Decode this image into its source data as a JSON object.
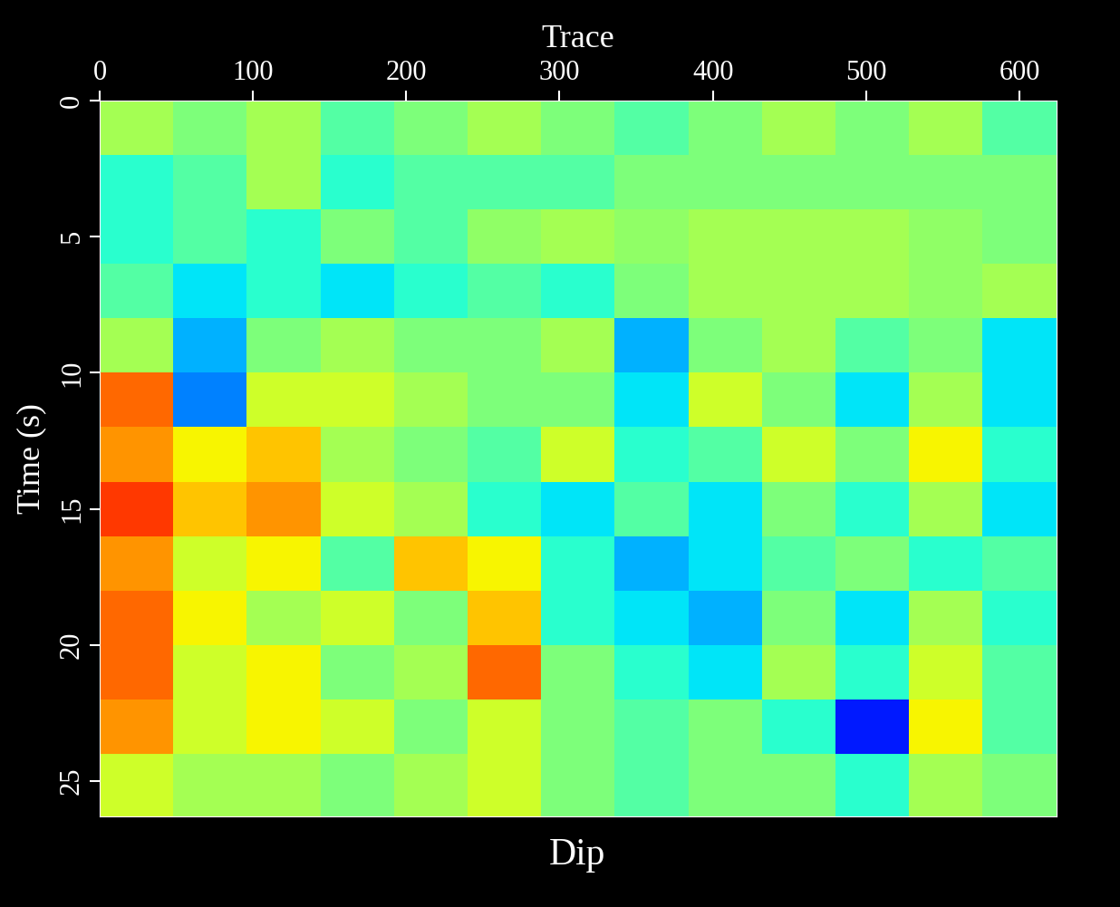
{
  "chart_data": {
    "type": "heatmap",
    "title": "Dip",
    "x_label": "Trace",
    "y_label": "Time (s)",
    "xlim": [
      0,
      624
    ],
    "xticks": [
      0,
      100,
      200,
      300,
      400,
      500,
      600
    ],
    "ylim": [
      26.3,
      0
    ],
    "yticks": [
      0,
      5,
      10,
      15,
      20,
      25
    ],
    "x_edges": [
      0,
      48,
      96,
      144,
      192,
      240,
      288,
      336,
      384,
      432,
      480,
      528,
      576,
      624
    ],
    "y_edges": [
      0,
      2,
      4,
      6,
      8,
      10,
      12,
      14,
      16,
      18,
      20,
      22,
      24,
      26.3
    ],
    "color_range": [
      -1,
      1
    ],
    "cells": [
      [
        0.1,
        0,
        0.1,
        -0.1,
        0,
        0.1,
        0,
        -0.1,
        0,
        0.1,
        0,
        0.1,
        -0.1
      ],
      [
        -0.2,
        -0.1,
        0.1,
        -0.2,
        -0.1,
        -0.1,
        -0.1,
        0,
        0,
        0,
        0,
        0,
        0
      ],
      [
        -0.2,
        -0.1,
        -0.2,
        0,
        -0.1,
        0.05,
        0.1,
        0.05,
        0.1,
        0.1,
        0.1,
        0.05,
        0
      ],
      [
        -0.1,
        -0.3,
        -0.2,
        -0.3,
        -0.2,
        -0.1,
        -0.2,
        0,
        0.1,
        0.1,
        0.1,
        0.05,
        0.1
      ],
      [
        0.1,
        -0.4,
        0,
        0.1,
        0,
        0,
        0.1,
        -0.4,
        0,
        0.1,
        -0.1,
        0,
        -0.3
      ],
      [
        0.6,
        -0.5,
        0.2,
        0.2,
        0.1,
        0,
        0,
        -0.3,
        0.2,
        0,
        -0.3,
        0.1,
        -0.3
      ],
      [
        0.5,
        0.3,
        0.4,
        0.1,
        0,
        -0.1,
        0.2,
        -0.2,
        -0.1,
        0.2,
        0,
        0.3,
        -0.2
      ],
      [
        0.7,
        0.4,
        0.5,
        0.2,
        0.1,
        -0.2,
        -0.3,
        -0.1,
        -0.3,
        0,
        -0.2,
        0.1,
        -0.3
      ],
      [
        0.5,
        0.2,
        0.3,
        -0.1,
        0.4,
        0.3,
        -0.2,
        -0.4,
        -0.3,
        -0.1,
        0,
        -0.2,
        -0.1
      ],
      [
        0.6,
        0.3,
        0.1,
        0.2,
        0,
        0.4,
        -0.2,
        -0.3,
        -0.4,
        0,
        -0.3,
        0.1,
        -0.2
      ],
      [
        0.6,
        0.2,
        0.3,
        0,
        0.1,
        0.6,
        0,
        -0.2,
        -0.3,
        0.1,
        -0.2,
        0.2,
        -0.1
      ],
      [
        0.5,
        0.2,
        0.3,
        0.2,
        0,
        0.2,
        0,
        -0.1,
        0,
        -0.2,
        -0.7,
        0.3,
        -0.1
      ],
      [
        0.2,
        0.1,
        0.1,
        0,
        0.1,
        0.2,
        0,
        -0.1,
        0,
        0,
        -0.2,
        0.1,
        0
      ]
    ]
  }
}
